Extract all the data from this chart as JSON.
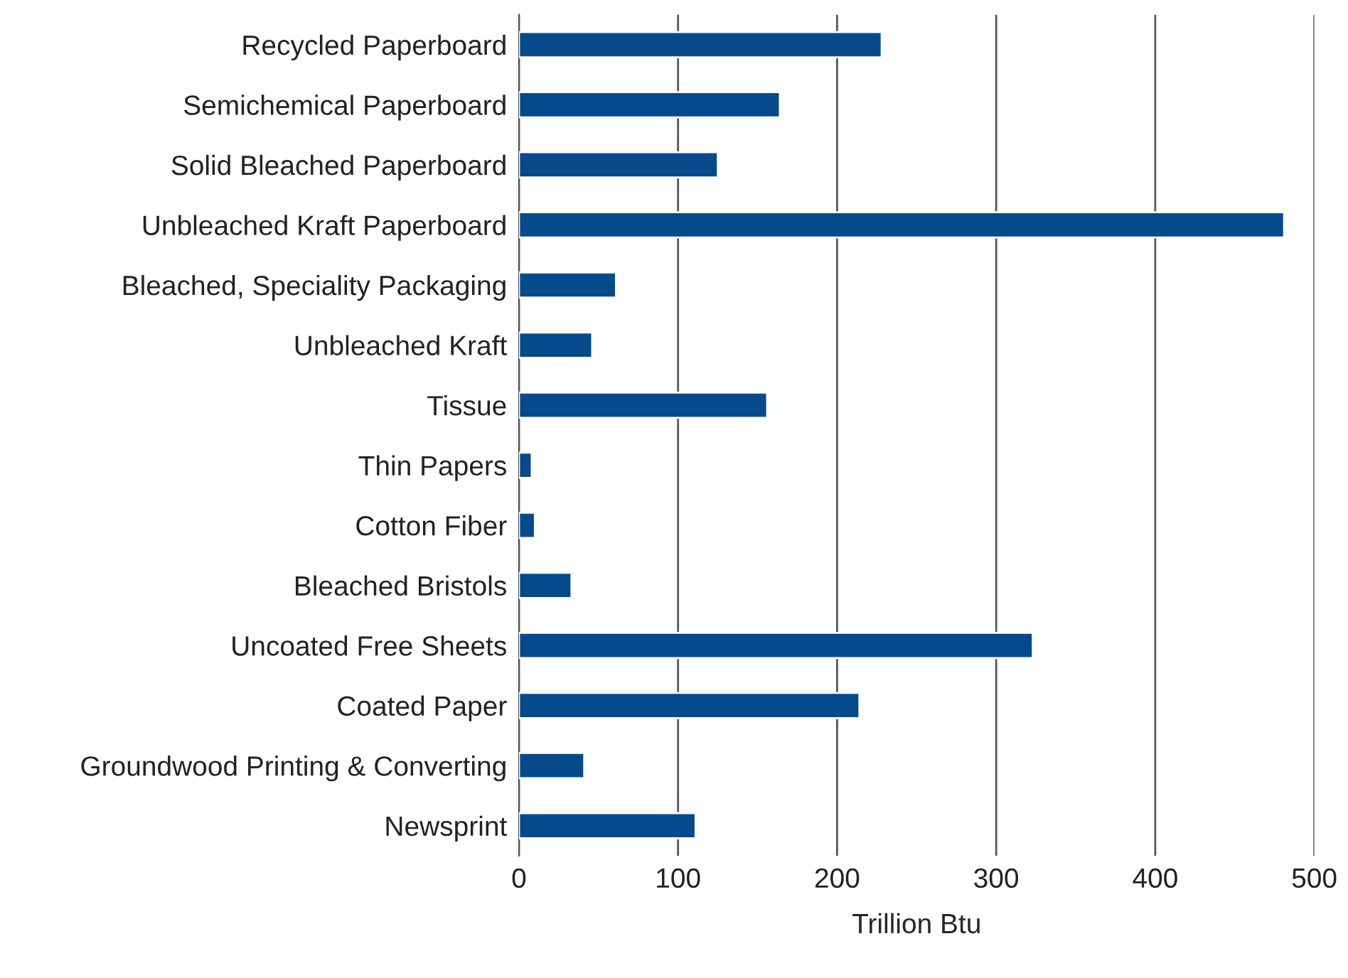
{
  "chart_data": {
    "type": "bar",
    "orientation": "horizontal",
    "xlabel": "Trillion Btu",
    "categories": [
      "Recycled Paperboard",
      "Semichemical Paperboard",
      "Solid Bleached Paperboard",
      "Unbleached Kraft Paperboard",
      "Bleached, Speciality Packaging",
      "Unbleached Kraft",
      "Tissue",
      "Thin Papers",
      "Cotton Fiber",
      "Bleached Bristols",
      "Uncoated Free Sheets",
      "Coated Paper",
      "Groundwood Printing & Converting",
      "Newsprint"
    ],
    "values": [
      228,
      164,
      125,
      481,
      61,
      46,
      156,
      8,
      10,
      33,
      323,
      214,
      41,
      111
    ],
    "color": "#064a8c",
    "xlim": [
      0,
      500
    ],
    "xticks": [
      0,
      100,
      200,
      300,
      400,
      500
    ],
    "grid": "x"
  }
}
